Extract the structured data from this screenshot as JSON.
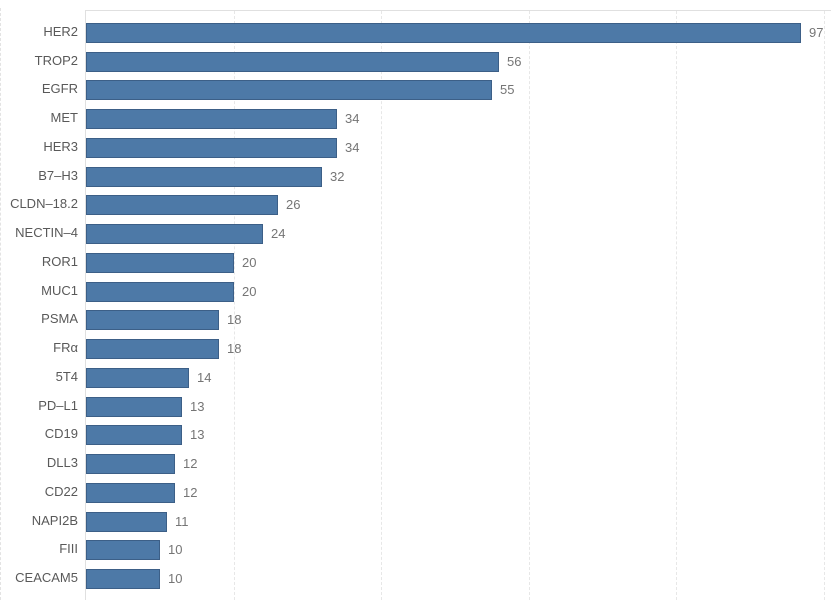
{
  "chart_data": {
    "type": "bar",
    "orientation": "horizontal",
    "title": "",
    "xlabel": "",
    "ylabel": "",
    "categories": [
      "HER2",
      "TROP2",
      "EGFR",
      "MET",
      "HER3",
      "B7–H3",
      "CLDN–18.2",
      "NECTIN–4",
      "ROR1",
      "MUC1",
      "PSMA",
      "FRα",
      "5T4",
      "PD–L1",
      "CD19",
      "DLL3",
      "CD22",
      "NAPI2B",
      "FIII",
      "CEACAM5"
    ],
    "values": [
      97,
      56,
      55,
      34,
      34,
      32,
      26,
      24,
      20,
      20,
      18,
      18,
      14,
      13,
      13,
      12,
      12,
      11,
      10,
      10
    ],
    "value_labels": [
      "97",
      "56",
      "55",
      "34",
      "34",
      "32",
      "26",
      "24",
      "20",
      "20",
      "18",
      "18",
      "14",
      "13",
      "13",
      "12",
      "12",
      "11",
      "10",
      "10"
    ],
    "xlim": [
      0,
      101
    ],
    "x_gridlines": [
      20,
      40,
      60,
      80,
      100
    ],
    "grid_style": "dashed",
    "legend": "none",
    "value_labels_shown": true,
    "colors": {
      "bar_fill": "#4d79a7",
      "bar_border": "#3c5f87",
      "axis_line": "#e0e0e0",
      "gridline": "#e7e7e7",
      "category_label": "#595959",
      "value_label": "#757575",
      "background": "#ffffff"
    }
  }
}
